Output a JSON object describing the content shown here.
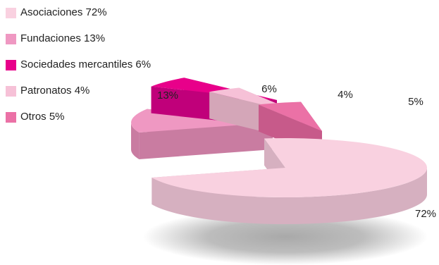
{
  "chart_data": {
    "type": "pie",
    "style": "3d-exploded",
    "title": "",
    "legend_position": "top-left",
    "slices": [
      {
        "name": "Asociaciones",
        "value": 72,
        "legend_label": "Asociaciones 72%",
        "data_label": "72%",
        "color": "#f9d1e0",
        "side_color": "#d6b0c0"
      },
      {
        "name": "Fundaciones",
        "value": 13,
        "legend_label": "Fundaciones 13%",
        "data_label": "13%",
        "color": "#ef98c2",
        "side_color": "#c97ca1"
      },
      {
        "name": "Sociedades mercantiles",
        "value": 6,
        "legend_label": "Sociedades mercantiles 6%",
        "data_label": "6%",
        "color": "#e8008a",
        "side_color": "#c0007a"
      },
      {
        "name": "Patronatos",
        "value": 4,
        "legend_label": "Patronatos 4%",
        "data_label": "4%",
        "color": "#f6c1d7",
        "side_color": "#d4a6b8"
      },
      {
        "name": "Otros",
        "value": 5,
        "legend_label": "Otros 5%",
        "data_label": "5%",
        "color": "#eb71a6",
        "side_color": "#c75a8a"
      }
    ]
  }
}
